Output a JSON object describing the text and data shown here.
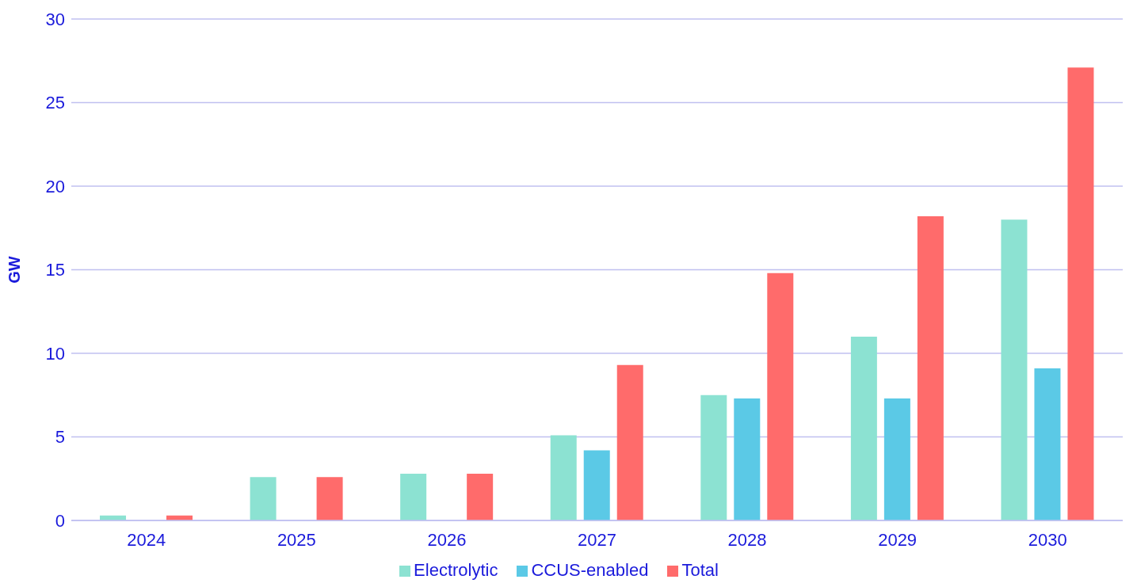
{
  "chart_data": {
    "type": "bar",
    "ylabel": "GW",
    "categories": [
      "2024",
      "2025",
      "2026",
      "2027",
      "2028",
      "2029",
      "2030"
    ],
    "series": [
      {
        "name": "Electrolytic",
        "color": "#8ce2d2",
        "values": [
          0.3,
          2.6,
          2.8,
          5.1,
          7.5,
          11.0,
          18.0
        ]
      },
      {
        "name": "CCUS-enabled",
        "color": "#5bc9e6",
        "values": [
          0,
          0,
          0,
          4.2,
          7.3,
          7.3,
          9.1
        ]
      },
      {
        "name": "Total",
        "color": "#ff6b6b",
        "values": [
          0.3,
          2.6,
          2.8,
          9.3,
          14.8,
          18.2,
          27.1
        ]
      }
    ],
    "ylim": [
      0,
      30
    ],
    "yticks": [
      0,
      5,
      10,
      15,
      20,
      25,
      30
    ],
    "grid": "y",
    "legend": "bottom"
  }
}
